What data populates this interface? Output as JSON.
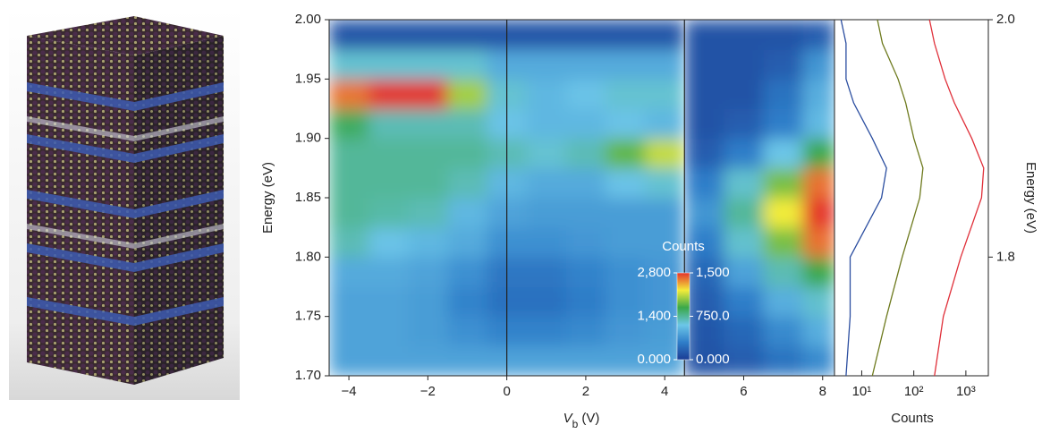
{
  "chart_data": [
    {
      "type": "heatmap",
      "xlabel_symbol": "V",
      "xlabel_subscript": "b",
      "xlabel_unit": "(V)",
      "ylabel": "Energy (eV)",
      "xlim": [
        -4.5,
        8.3
      ],
      "ylim": [
        1.7,
        2.0
      ],
      "xticks": [
        {
          "value": -4,
          "label": "−4"
        },
        {
          "value": -2,
          "label": "−2"
        },
        0,
        2,
        4,
        6,
        8
      ],
      "yticks": [
        {
          "value": 1.7,
          "label": "1.70"
        },
        1.75,
        {
          "value": 1.8,
          "label": "1.80"
        },
        1.85,
        {
          "value": 1.9,
          "label": "1.90"
        },
        1.95,
        {
          "value": 2,
          "label": "2.00"
        }
      ],
      "dividers": [
        0,
        4.5
      ],
      "colormap": [
        "#1b3c94",
        "#2f7ec9",
        "#6cc6e8",
        "#3aa84a",
        "#f3ec3a",
        "#e4342c"
      ],
      "y_edges": [
        1.7,
        1.725,
        1.75,
        1.775,
        1.8,
        1.825,
        1.85,
        1.875,
        1.9,
        1.925,
        1.95,
        1.975,
        2.0
      ],
      "regions": [
        {
          "clim": [
            0,
            2800
          ],
          "x_edges": [
            -4.5,
            -3.5,
            -2.5,
            -1.5,
            -0.5,
            0.5,
            1.5,
            2.5,
            3.5,
            4.5
          ],
          "z": [
            [
              850,
              850,
              850,
              850,
              850,
              850,
              850,
              850,
              850
            ],
            [
              850,
              850,
              800,
              700,
              600,
              600,
              650,
              750,
              800
            ],
            [
              850,
              850,
              800,
              600,
              450,
              450,
              550,
              700,
              750
            ],
            [
              900,
              900,
              850,
              700,
              500,
              500,
              600,
              700,
              750
            ],
            [
              1300,
              1100,
              1000,
              900,
              700,
              700,
              750,
              800,
              800
            ],
            [
              1400,
              1350,
              1300,
              1000,
              850,
              800,
              800,
              800,
              800
            ],
            [
              1400,
              1400,
              1400,
              1300,
              1000,
              900,
              900,
              1100,
              1200
            ],
            [
              1400,
              1400,
              1400,
              1400,
              1300,
              1200,
              1300,
              1800,
              2100
            ],
            [
              1600,
              1300,
              1300,
              1300,
              1100,
              1000,
              1000,
              1100,
              1000
            ],
            [
              2600,
              2800,
              2800,
              2000,
              1200,
              1000,
              1100,
              1200,
              1200
            ],
            [
              1200,
              1200,
              1200,
              1200,
              900,
              900,
              900,
              900,
              900
            ],
            [
              200,
              200,
              200,
              200,
              200,
              200,
              200,
              200,
              200
            ]
          ]
        },
        {
          "clim": [
            0,
            1500
          ],
          "x_edges": [
            4.5,
            5.5,
            6.5,
            7.5,
            8.3
          ],
          "z": [
            [
              100,
              150,
              250,
              350
            ],
            [
              120,
              200,
              350,
              500
            ],
            [
              150,
              300,
              500,
              650
            ],
            [
              200,
              450,
              700,
              900
            ],
            [
              300,
              650,
              1000,
              1400
            ],
            [
              400,
              750,
              1200,
              1500
            ],
            [
              300,
              650,
              1000,
              1400
            ],
            [
              150,
              300,
              600,
              900
            ],
            [
              100,
              150,
              300,
              550
            ],
            [
              100,
              100,
              250,
              500
            ],
            [
              100,
              100,
              150,
              400
            ],
            [
              100,
              100,
              100,
              150
            ]
          ]
        }
      ],
      "colorbar": {
        "title": "Counts",
        "ticks_left": [
          {
            "value": 0,
            "label": "0.000"
          },
          {
            "value": 1400,
            "label": "1,400"
          },
          {
            "value": 2800,
            "label": "2,800"
          }
        ],
        "ticks_right": [
          {
            "value": 0,
            "label": "0.000"
          },
          {
            "value": 750,
            "label": "750.0"
          },
          {
            "value": 1500,
            "label": "1,500"
          }
        ]
      }
    },
    {
      "type": "line",
      "xscale": "log",
      "xlabel": "Counts",
      "ylabel": "Energy (eV)",
      "xlim": [
        3,
        2700
      ],
      "ylim": [
        1.7,
        2.0
      ],
      "xticks": [
        {
          "value": 10,
          "label": "10¹"
        },
        {
          "value": 100,
          "label": "10²"
        },
        {
          "value": 1000,
          "label": "10³"
        }
      ],
      "yticks": [
        1.8,
        {
          "value": 2,
          "label": "2.0"
        }
      ],
      "y": [
        1.7,
        1.75,
        1.8,
        1.85,
        1.875,
        1.9,
        1.93,
        1.95,
        1.98,
        2.0
      ],
      "series": [
        {
          "color": "#2b4ea0",
          "values": [
            5,
            6,
            6,
            24,
            30,
            16,
            7,
            5,
            5,
            4
          ]
        },
        {
          "color": "#6e7a1e",
          "values": [
            16,
            30,
            60,
            130,
            150,
            100,
            70,
            50,
            25,
            20
          ]
        },
        {
          "color": "#e0303a",
          "values": [
            250,
            370,
            800,
            2000,
            2200,
            1300,
            600,
            400,
            250,
            200
          ]
        }
      ]
    }
  ]
}
